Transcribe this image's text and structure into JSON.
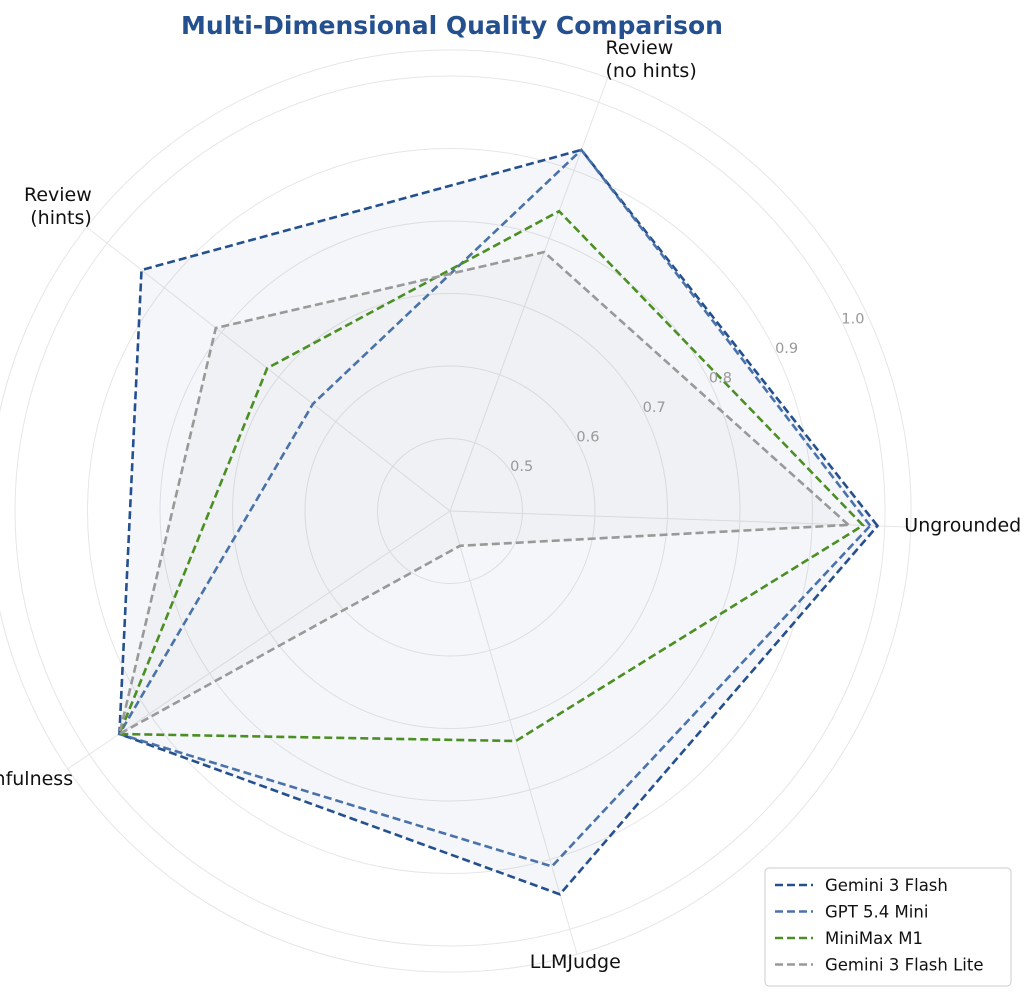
{
  "chart_data": {
    "type": "radar",
    "title": "Multi-Dimensional Quality Comparison",
    "axes": [
      [
        "Ungrounded"
      ],
      [
        "Review",
        "(no hints)"
      ],
      [
        "Review",
        "(hints)"
      ],
      [
        "Faithfulness"
      ],
      [
        "LLMJudge"
      ]
    ],
    "radial_range": [
      0.4,
      1.0
    ],
    "radial_ticks": [
      0.5,
      0.6,
      0.7,
      0.8,
      0.9,
      1.0
    ],
    "radial_tick_labels": [
      "0.5",
      "0.6",
      "0.7",
      "0.8",
      "0.9",
      "1.0"
    ],
    "grid": true,
    "legend_position": "bottom-right",
    "series": [
      {
        "name": "Gemini 3 Flash",
        "values": [
          0.99,
          0.93,
          0.94,
          0.95,
          0.95
        ],
        "color": "#24508f",
        "fill": true
      },
      {
        "name": "GPT 5.4 Mini",
        "values": [
          0.98,
          0.93,
          0.64,
          0.95,
          0.91
        ],
        "color": "#4a72aa",
        "fill": false
      },
      {
        "name": "MiniMax M1",
        "values": [
          0.97,
          0.84,
          0.72,
          0.95,
          0.73
        ],
        "color": "#4b8f23",
        "fill": false
      },
      {
        "name": "Gemini 3 Flash Lite",
        "values": [
          0.95,
          0.78,
          0.81,
          0.95,
          0.45
        ],
        "color": "#999999",
        "fill": true
      }
    ]
  }
}
